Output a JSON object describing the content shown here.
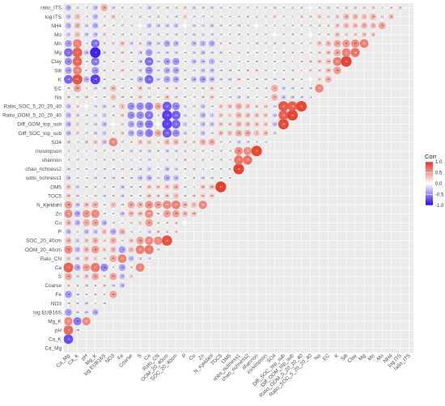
{
  "chart_data": {
    "type": "heatmap",
    "title": "",
    "variables": [
      "Ca_Mg",
      "Ca_K",
      "pH",
      "Mg_K",
      "log EUB16S",
      "NO3",
      "Fe",
      "Coarse",
      "S",
      "Ca",
      "Rato_CN",
      "OOM_20_40cm",
      "SOC_20_40cm",
      "P",
      "Cu",
      "Zn",
      "N_Kjeldahl",
      "TOC5",
      "OM5",
      "sobs_richness1",
      "chao_richness2",
      "shannon",
      "invsimpson",
      "SO4",
      "Diff_SOC_top_sub",
      "Diff_OOM_top_sub",
      "Ratio_OOM_5_20_20_40",
      "Ratio_SOC_5_20_20_40",
      "Na",
      "EC",
      "K",
      "Silt",
      "Clay",
      "Mg",
      "Mn",
      "Mo",
      "NH4",
      "log ITS",
      "ratio_ITS"
    ],
    "y_order": "bottom-to-top (Ca_Mg at bottom, ratio_ITS at top)",
    "x_order": "left-to-right",
    "triangle": "lower",
    "legend": {
      "title": "Corr",
      "ticks": [
        "1.0",
        "0.5",
        "0.0",
        "-0.5",
        "-1.0"
      ],
      "range": [
        -1,
        1
      ],
      "position": "right"
    },
    "colors": {
      "positive": "#e8321f",
      "neutral": "#ffffff",
      "negative": "#2b05f5",
      "panel_bg": "#ebebeb",
      "grid": "#ffffff"
    },
    "marker": "circle sized by |r|, labelled with r",
    "matrix_rows": [
      [],
      [
        -0.71
      ],
      [
        0.72,
        -0.09
      ],
      [
        0.57,
        -0.54,
        0.57
      ],
      [
        -0.4,
        -0.11,
        -0.17,
        -0.32
      ],
      [
        -0.06,
        0.12,
        -0.15,
        0.1,
        -0.05
      ],
      [
        -0.41,
        -0.08,
        0.04,
        0.12,
        0.07,
        0.44
      ],
      [
        0.14,
        0.11,
        -0.13,
        0.11,
        0.15,
        -0.14,
        -0.25
      ],
      [
        0.43,
        -0.12,
        0.25,
        0.43,
        0.06,
        0.44,
        -0.27,
        0.2
      ],
      [
        0.78,
        -0.36,
        0.47,
        0.67,
        -0.49,
        0.02,
        -0.38,
        0.05,
        0.6
      ],
      [
        0.22,
        -0.19,
        0.27,
        0.2,
        -0.05,
        0.42,
        0.61,
        -0.27,
        -0.12,
        -0.06
      ],
      [
        0.55,
        -0.27,
        0.34,
        0.49,
        0.21,
        0.32,
        -0.4,
        0.31,
        0.62,
        0.67,
        -0.06
      ],
      [
        0.34,
        -0.2,
        0.23,
        0.35,
        0.14,
        0.37,
        0.04,
        0.24,
        0.48,
        0.57,
        0.57,
        0.86
      ],
      [
        -0.26,
        0.02,
        -0.25,
        -0.22,
        0.27,
        -0.33,
        0.35,
        -0.03,
        0.01,
        -0.15,
        0.18,
        0.12,
        0.14
      ],
      [
        0.34,
        -0.29,
        0.4,
        0.43,
        -0.28,
        -0.04,
        0.01,
        0.12,
        0.2,
        0.47,
        0.09,
        0.08,
        0.15,
        0.0
      ],
      [
        0.56,
        -0.35,
        0.5,
        0.57,
        -0.03,
        0.02,
        -0.22,
        0.32,
        0.29,
        0.56,
        0.09,
        0.47,
        0.45,
        0.32,
        0.28
      ],
      [
        0.48,
        -0.22,
        0.29,
        0.37,
        0.05,
        0.3,
        -0.06,
        0.42,
        0.35,
        0.52,
        0.46,
        0.58,
        0.62,
        0.34,
        0.3,
        0.58
      ],
      [
        0.25,
        -0.13,
        0.1,
        0.13,
        -0.12,
        0.06,
        -0.16,
        0.05,
        0.05,
        0.25,
        0.19,
        0.25,
        0.3,
        0.09,
        0.16,
        0.24,
        0.24
      ],
      [
        0.27,
        -0.17,
        0.09,
        0.12,
        -0.1,
        0.05,
        -0.19,
        0.09,
        0.08,
        0.24,
        0.22,
        0.27,
        0.34,
        0.09,
        0.1,
        0.26,
        0.28,
        0.94
      ],
      [
        -0.22,
        0.04,
        -0.01,
        -0.13,
        -0.05,
        -0.13,
        0.09,
        -0.09,
        -0.24,
        -0.29,
        -0.07,
        -0.34,
        -0.27,
        0.01,
        0.11,
        -0.16,
        -0.12,
        0.03,
        0.02
      ],
      [
        -0.15,
        -0.03,
        0.04,
        -0.07,
        -0.06,
        -0.03,
        0.14,
        -0.11,
        -0.14,
        -0.2,
        0.01,
        -0.23,
        -0.14,
        0.05,
        0.14,
        -0.1,
        -0.02,
        0.05,
        0.07,
        0.92
      ],
      [
        -0.02,
        -0.07,
        0.04,
        -0.01,
        0.06,
        0.09,
        -0.01,
        -0.1,
        -0.02,
        -0.09,
        0.1,
        -0.1,
        -0.05,
        0.14,
        0.03,
        0.12,
        0.04,
        -0.06,
        -0.01,
        0.68,
        0.69
      ],
      [
        -0.1,
        -0.02,
        0.01,
        -0.06,
        0.07,
        0.05,
        0.06,
        -0.13,
        -0.09,
        -0.15,
        0.08,
        -0.16,
        -0.09,
        0.12,
        0.05,
        0.05,
        -0.01,
        -0.07,
        -0.03,
        0.55,
        0.56,
        0.9
      ],
      [
        0.18,
        -0.01,
        0.18,
        0.22,
        -0.22,
        0.59,
        -0.07,
        0.06,
        0.25,
        0.22,
        0.11,
        0.31,
        0.32,
        0.18,
        0.14,
        0.35,
        0.38,
        0.04,
        0.05,
        -0.17,
        -0.08,
        0.03,
        -0.02
      ],
      [
        -0.26,
        0.17,
        -0.07,
        -0.16,
        -0.2,
        0.02,
        0.19,
        -0.34,
        -0.41,
        -0.53,
        0.41,
        -0.66,
        -0.45,
        -0.15,
        0.07,
        -0.22,
        -0.06,
        0.28,
        0.27,
        0.39,
        0.39,
        0.3,
        0.28,
        -0.12
      ],
      [
        -0.28,
        0.2,
        -0.07,
        -0.15,
        -0.25,
        0.0,
        0.13,
        -0.36,
        -0.43,
        -0.55,
        0.0,
        -0.77,
        -0.62,
        -0.2,
        0.06,
        -0.24,
        -0.22,
        0.24,
        0.19,
        0.32,
        0.29,
        0.26,
        0.23,
        -0.22,
        0.89
      ],
      [
        -0.27,
        0.18,
        -0.06,
        -0.12,
        -0.2,
        0.08,
        0.18,
        -0.45,
        -0.47,
        -0.57,
        0.03,
        -0.78,
        -0.64,
        -0.13,
        0.05,
        -0.29,
        -0.2,
        0.23,
        0.2,
        0.34,
        0.28,
        0.25,
        0.24,
        -0.19,
        0.78,
        0.92
      ],
      [
        -0.24,
        0.13,
        0.0,
        -0.09,
        -0.18,
        -0.09,
        0.3,
        -0.45,
        -0.47,
        -0.53,
        0.41,
        -0.67,
        -0.48,
        -0.11,
        0.09,
        -0.22,
        -0.04,
        0.22,
        0.25,
        0.37,
        0.27,
        0.18,
        0.18,
        -0.09,
        0.83,
        0.79,
        0.91
      ],
      [
        0.18,
        0.09,
        0.19,
        -0.01,
        0.05,
        0.3,
        -0.08,
        0.09,
        0.21,
        0.13,
        -0.02,
        0.26,
        0.17,
        0.06,
        -0.01,
        0.16,
        0.23,
        -0.01,
        -0.03,
        -0.16,
        -0.12,
        0.01,
        -0.03,
        0.37,
        -0.21,
        -0.16,
        -0.09,
        -0.1
      ],
      [
        0.08,
        0.45,
        0.1,
        -0.14,
        -0.12,
        0.33,
        -0.04,
        0.05,
        0.25,
        0.13,
        0.05,
        0.15,
        0.15,
        0.03,
        0.03,
        0.13,
        0.21,
        0.04,
        0.06,
        -0.06,
        -0.02,
        -0.04,
        -0.03,
        0.4,
        -0.17,
        -0.09,
        -0.04,
        -0.09,
        0.59
      ],
      [
        -0.62,
        0.84,
        -0.31,
        -0.78,
        0.06,
        -0.06,
        -0.06,
        -0.06,
        -0.31,
        -0.62,
        -0.17,
        -0.37,
        -0.35,
        0.08,
        -0.28,
        -0.38,
        -0.28,
        -0.12,
        -0.17,
        0.18,
        0.09,
        0.06,
        0.09,
        -0.09,
        0.09,
        0.14,
        0.04,
        0.0,
        0.2,
        0.37
      ],
      [
        -0.38,
        0.61,
        0.07,
        -0.42,
        0.12,
        0.11,
        0.18,
        0.07,
        -0.17,
        -0.46,
        -0.06,
        -0.34,
        -0.36,
        0.11,
        -0.07,
        -0.21,
        -0.23,
        -0.05,
        -0.09,
        0.05,
        0.08,
        0.15,
        0.11,
        0.02,
        0.02,
        0.12,
        0.1,
        0.17,
        0.13,
        0.28,
        0.48
      ],
      [
        -0.46,
        0.74,
        -0.03,
        -0.56,
        0.07,
        0.04,
        0.12,
        -0.03,
        -0.18,
        -0.59,
        -0.09,
        -0.38,
        -0.41,
        -0.01,
        -0.25,
        -0.23,
        -0.3,
        -0.07,
        -0.1,
        0.03,
        0.04,
        0.06,
        0.02,
        0.03,
        -0.02,
        0.1,
        0.06,
        0.16,
        0.22,
        0.28,
        0.62,
        0.92
      ],
      [
        -0.6,
        0.77,
        -0.24,
        -0.9,
        0.19,
        0.09,
        0.16,
        0.08,
        -0.18,
        -0.4,
        -0.08,
        -0.15,
        -0.14,
        -0.02,
        -0.13,
        -0.22,
        -0.13,
        0.16,
        0.01,
        0.11,
        0.05,
        -0.02,
        0.01,
        0.02,
        0.05,
        0.11,
        -0.03,
        -0.01,
        0.14,
        0.25,
        0.42,
        0.61,
        0.68
      ],
      [
        -0.4,
        0.61,
        -0.01,
        -0.58,
        0.08,
        0.17,
        0.26,
        -0.16,
        0.15,
        -0.28,
        -0.16,
        -0.35,
        -0.28,
        0.01,
        -0.26,
        -0.3,
        -0.33,
        0.11,
        0.09,
        -0.04,
        -0.02,
        -0.08,
        -0.07,
        0.14,
        -0.06,
        0.05,
        0.03,
        0.03,
        0.27,
        0.31,
        0.44,
        0.49,
        0.55,
        0.62
      ],
      [
        -0.2,
        0.3,
        -0.18,
        -0.23,
        0.17,
        0.04,
        -0.06,
        0.05,
        0.02,
        -0.09,
        -0.11,
        -0.07,
        -0.08,
        -0.04,
        -0.13,
        -0.11,
        -0.08,
        0.05,
        0.02,
        0.08,
        0.03,
        0.04,
        0.03,
        0.0,
        0.07,
        0.08,
        0.03,
        0.0,
        0.07,
        0.09,
        0.27,
        0.13,
        0.15,
        0.24,
        0.22
      ],
      [
        -0.3,
        0.33,
        -0.15,
        -0.31,
        0.09,
        0.04,
        -0.07,
        -0.03,
        0.0,
        -0.23,
        -0.18,
        -0.18,
        -0.21,
        0.0,
        -0.14,
        -0.12,
        -0.18,
        0.09,
        0.04,
        -0.08,
        -0.02,
        0.0,
        -0.02,
        0.02,
        -0.02,
        0.04,
        0.05,
        0.05,
        0.13,
        0.11,
        0.24,
        0.31,
        0.28,
        0.35,
        0.31,
        0.43
      ],
      [
        -0.23,
        0.3,
        -0.03,
        -0.27,
        0.03,
        0.22,
        0.1,
        0.03,
        0.12,
        -0.06,
        0.13,
        -0.1,
        -0.08,
        0.2,
        -0.04,
        -0.07,
        0.02,
        -0.01,
        0.04,
        0.05,
        0.08,
        0.11,
        0.07,
        0.17,
        0.07,
        0.1,
        0.13,
        0.09,
        0.21,
        0.13,
        0.21,
        0.34,
        0.31,
        0.3,
        0.34,
        0.12,
        0.28
      ],
      [
        -0.29,
        0.12,
        -0.03,
        -0.24,
        0.39,
        -0.14,
        0.06,
        -0.05,
        -0.02,
        -0.19,
        -0.07,
        -0.09,
        -0.05,
        0.17,
        -0.15,
        -0.08,
        -0.14,
        0.05,
        0.04,
        0.07,
        0.07,
        0.07,
        0.07,
        -0.09,
        0.03,
        0.11,
        0.09,
        0.0,
        0.06,
        -0.12,
        0.05,
        0.15,
        0.16,
        0.14,
        0.15,
        0.1,
        0.08,
        0.17
      ],
      [
        0.19,
        -0.09,
        0.06,
        0.13,
        -0.94,
        0.06,
        -0.04,
        -0.14,
        -0.07,
        0.14,
        0.03,
        -0.01,
        0.0,
        -0.13,
        0.13,
        0.01,
        0.0,
        0.18,
        0.18,
        0.07,
        0.1,
        -0.04,
        0.0,
        0.13,
        0.21,
        0.21,
        0.22,
        0.2,
        0.0,
        0.23,
        0.11,
        -0.04,
        0.03,
        -0.1,
        0.08,
        -0.09,
        0.04,
        0.05,
        0.42
      ]
    ]
  }
}
